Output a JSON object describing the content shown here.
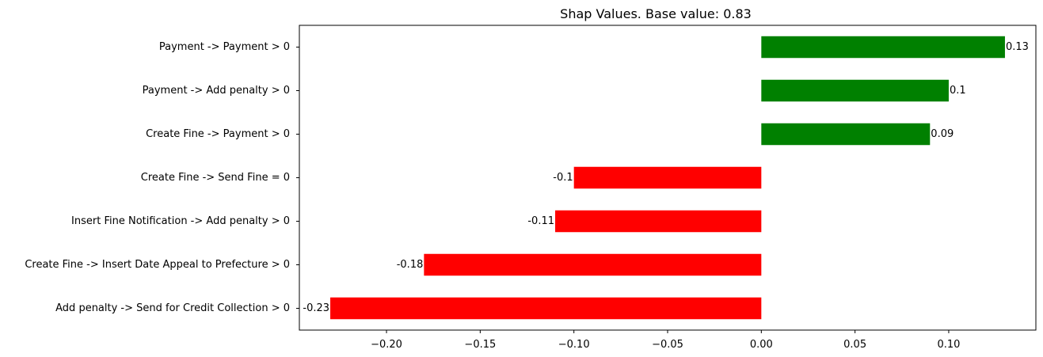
{
  "chart_data": {
    "type": "bar",
    "orientation": "horizontal",
    "title": "Shap Values. Base value: 0.83",
    "xlabel": "",
    "ylabel": "",
    "categories": [
      "Payment -> Payment > 0",
      "Payment -> Add penalty > 0",
      "Create Fine -> Payment > 0",
      "Create Fine -> Send Fine = 0",
      "Insert Fine Notification -> Add penalty > 0",
      "Create Fine -> Insert Date Appeal to Prefecture > 0",
      "Add penalty -> Send for Credit Collection > 0"
    ],
    "values": [
      0.13,
      0.1,
      0.09,
      -0.1,
      -0.11,
      -0.18,
      -0.23
    ],
    "value_labels": [
      "0.13",
      "0.1",
      "0.09",
      "-0.1",
      "-0.11",
      "-0.18",
      "-0.23"
    ],
    "xlim": [
      -0.2465,
      0.1465
    ],
    "xticks": [
      -0.2,
      -0.15,
      -0.1,
      -0.05,
      0.0,
      0.05,
      0.1
    ],
    "xtick_labels": [
      "−0.20",
      "−0.15",
      "−0.10",
      "−0.05",
      "0.00",
      "0.05",
      "0.10"
    ],
    "grid": false,
    "colors": {
      "positive": "#008000",
      "negative": "#ff0000"
    }
  }
}
